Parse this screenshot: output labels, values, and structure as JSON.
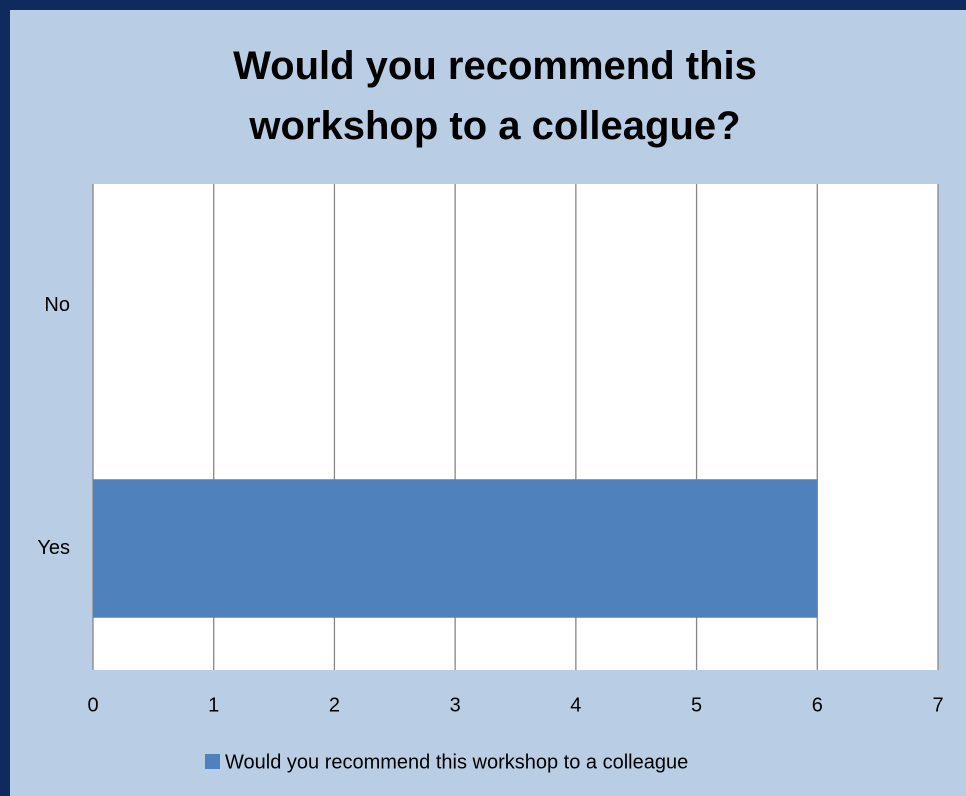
{
  "chart_data": {
    "type": "bar",
    "orientation": "horizontal",
    "title": "Would you recommend this workshop to a colleague?",
    "categories": [
      "Yes",
      "No"
    ],
    "series": [
      {
        "name": "Would you recommend this workshop to a colleague",
        "color": "#4f81bd",
        "values": [
          6,
          0
        ]
      }
    ],
    "xlim": [
      0,
      7
    ],
    "xticks": [
      0,
      1,
      2,
      3,
      4,
      5,
      6,
      7
    ],
    "grid": true,
    "legend": "bottom"
  }
}
